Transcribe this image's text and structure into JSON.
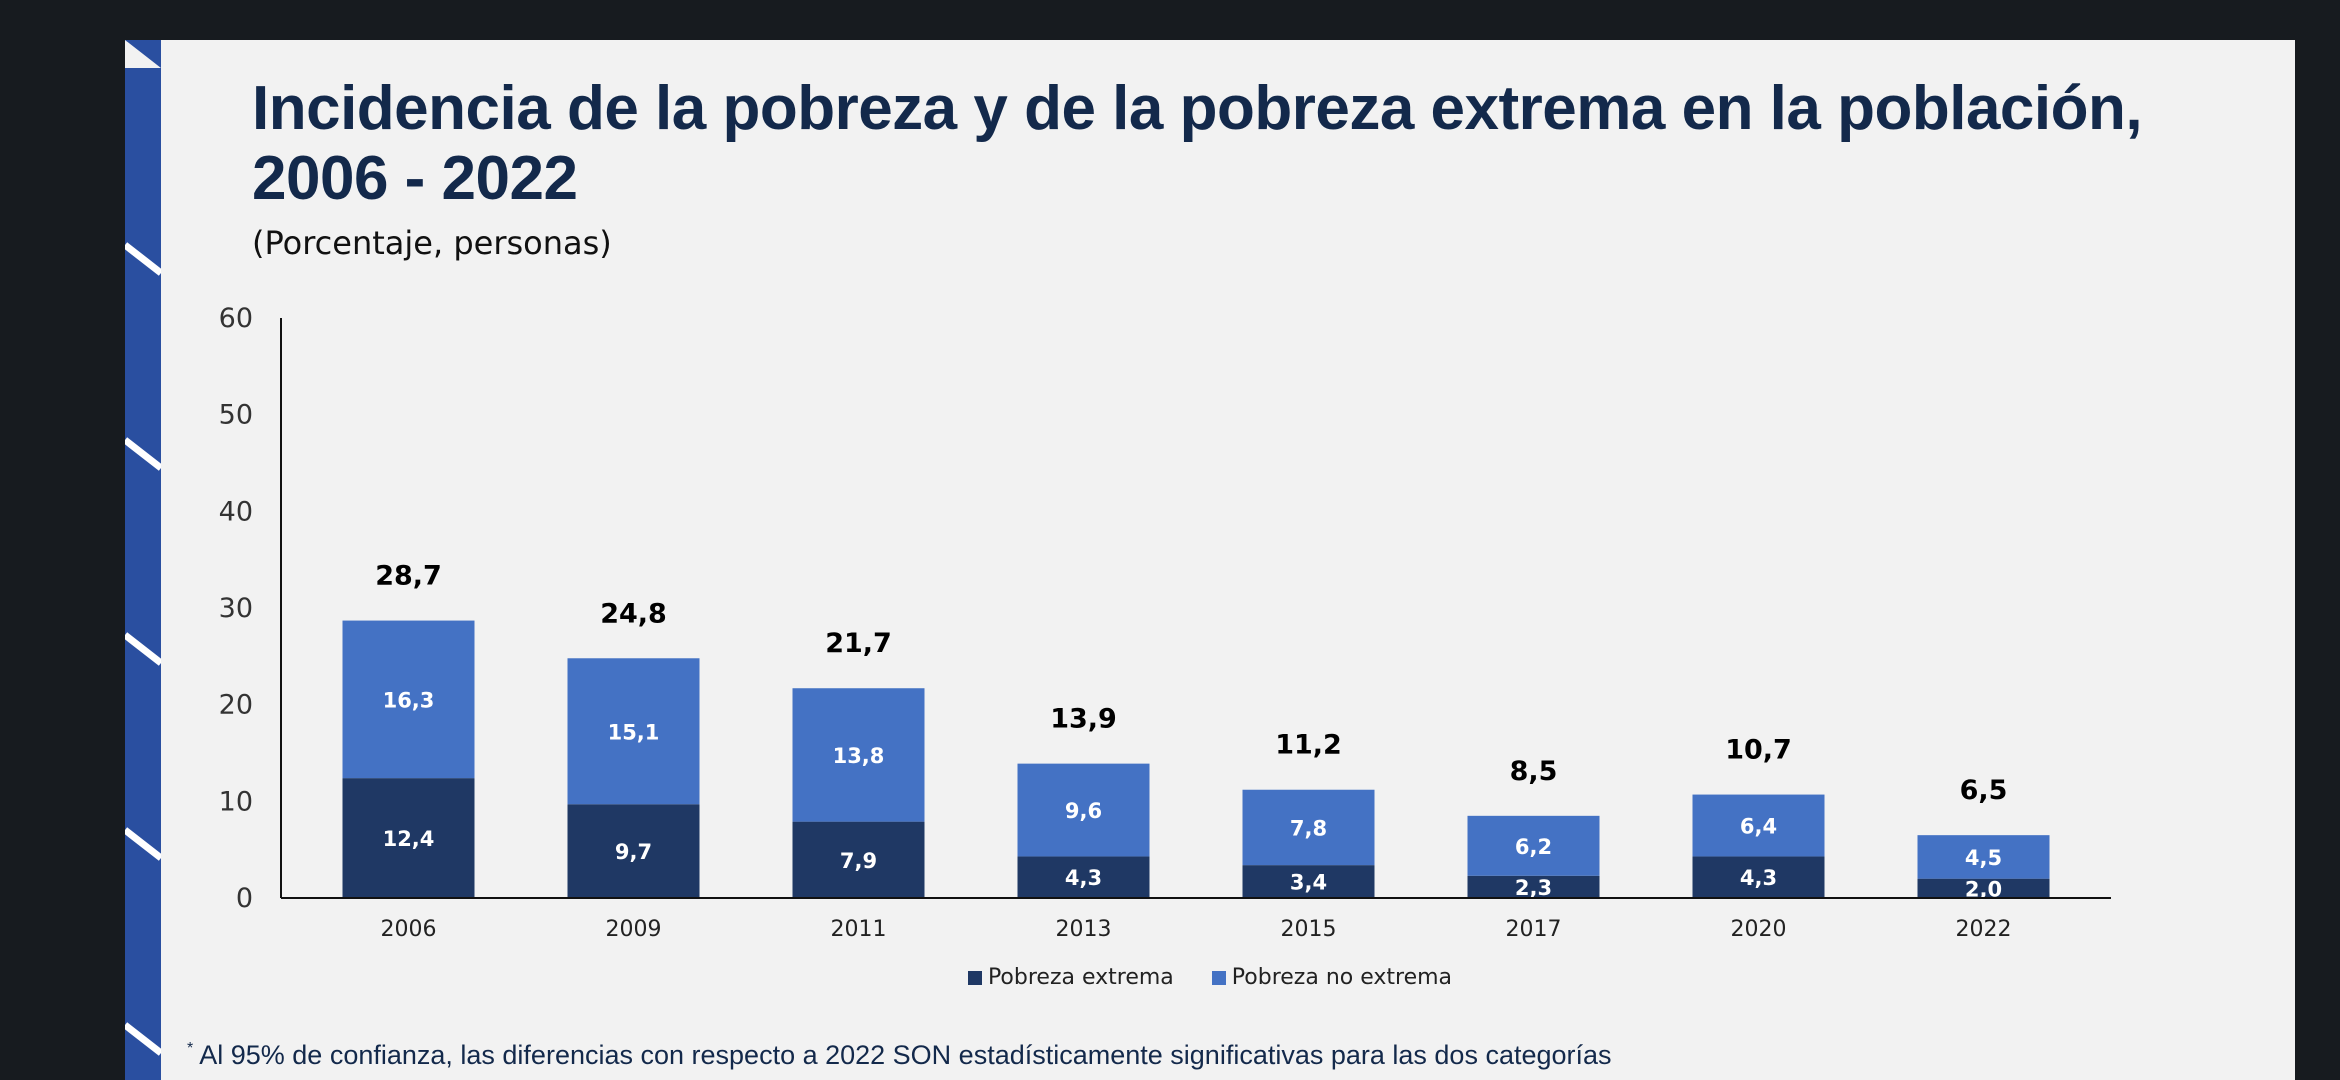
{
  "colors": {
    "background": "#171b1f",
    "slide": "#f2f2f2",
    "title": "#13294b",
    "stripe": "#2a4fa0",
    "pobreza_extrema": "#1f3864",
    "pobreza_no_extrema": "#4472c4",
    "axis": "#111111"
  },
  "title": "Incidencia de la pobreza y de la pobreza extrema en la población, 2006 - 2022",
  "subtitle": "(Porcentaje, personas)",
  "footnote": {
    "marker": "*",
    "text": "Al 95% de confianza, las diferencias con respecto a 2022 SON estadísticamente significativas para las dos categorías"
  },
  "chart_data": {
    "type": "bar",
    "stacked": true,
    "categories": [
      "2006",
      "2009",
      "2011",
      "2013",
      "2015",
      "2017",
      "2020",
      "2022"
    ],
    "series": [
      {
        "name": "Pobreza extrema",
        "values": [
          12.4,
          9.7,
          7.9,
          4.3,
          3.4,
          2.3,
          4.3,
          2.0
        ],
        "labels": [
          "12,4",
          "9,7",
          "7,9",
          "4,3",
          "3,4",
          "2,3",
          "4,3",
          "2,0"
        ]
      },
      {
        "name": "Pobreza no extrema",
        "values": [
          16.3,
          15.1,
          13.8,
          9.6,
          7.8,
          6.2,
          6.4,
          4.5
        ],
        "labels": [
          "16,3",
          "15,1",
          "13,8",
          "9,6",
          "7,8",
          "6,2",
          "6,4",
          "4,5"
        ]
      }
    ],
    "totals": [
      28.7,
      24.8,
      21.7,
      13.9,
      11.2,
      8.5,
      10.7,
      6.5
    ],
    "total_labels": [
      "28,7",
      "24,8",
      "21,7",
      "13,9",
      "11,2",
      "8,5",
      "10,7",
      "6,5"
    ],
    "ylim": [
      0,
      60
    ],
    "yticks": [
      0,
      10,
      20,
      30,
      40,
      50,
      60
    ],
    "grid": false,
    "legend": "bottom-center",
    "xlabel": "",
    "ylabel": ""
  }
}
